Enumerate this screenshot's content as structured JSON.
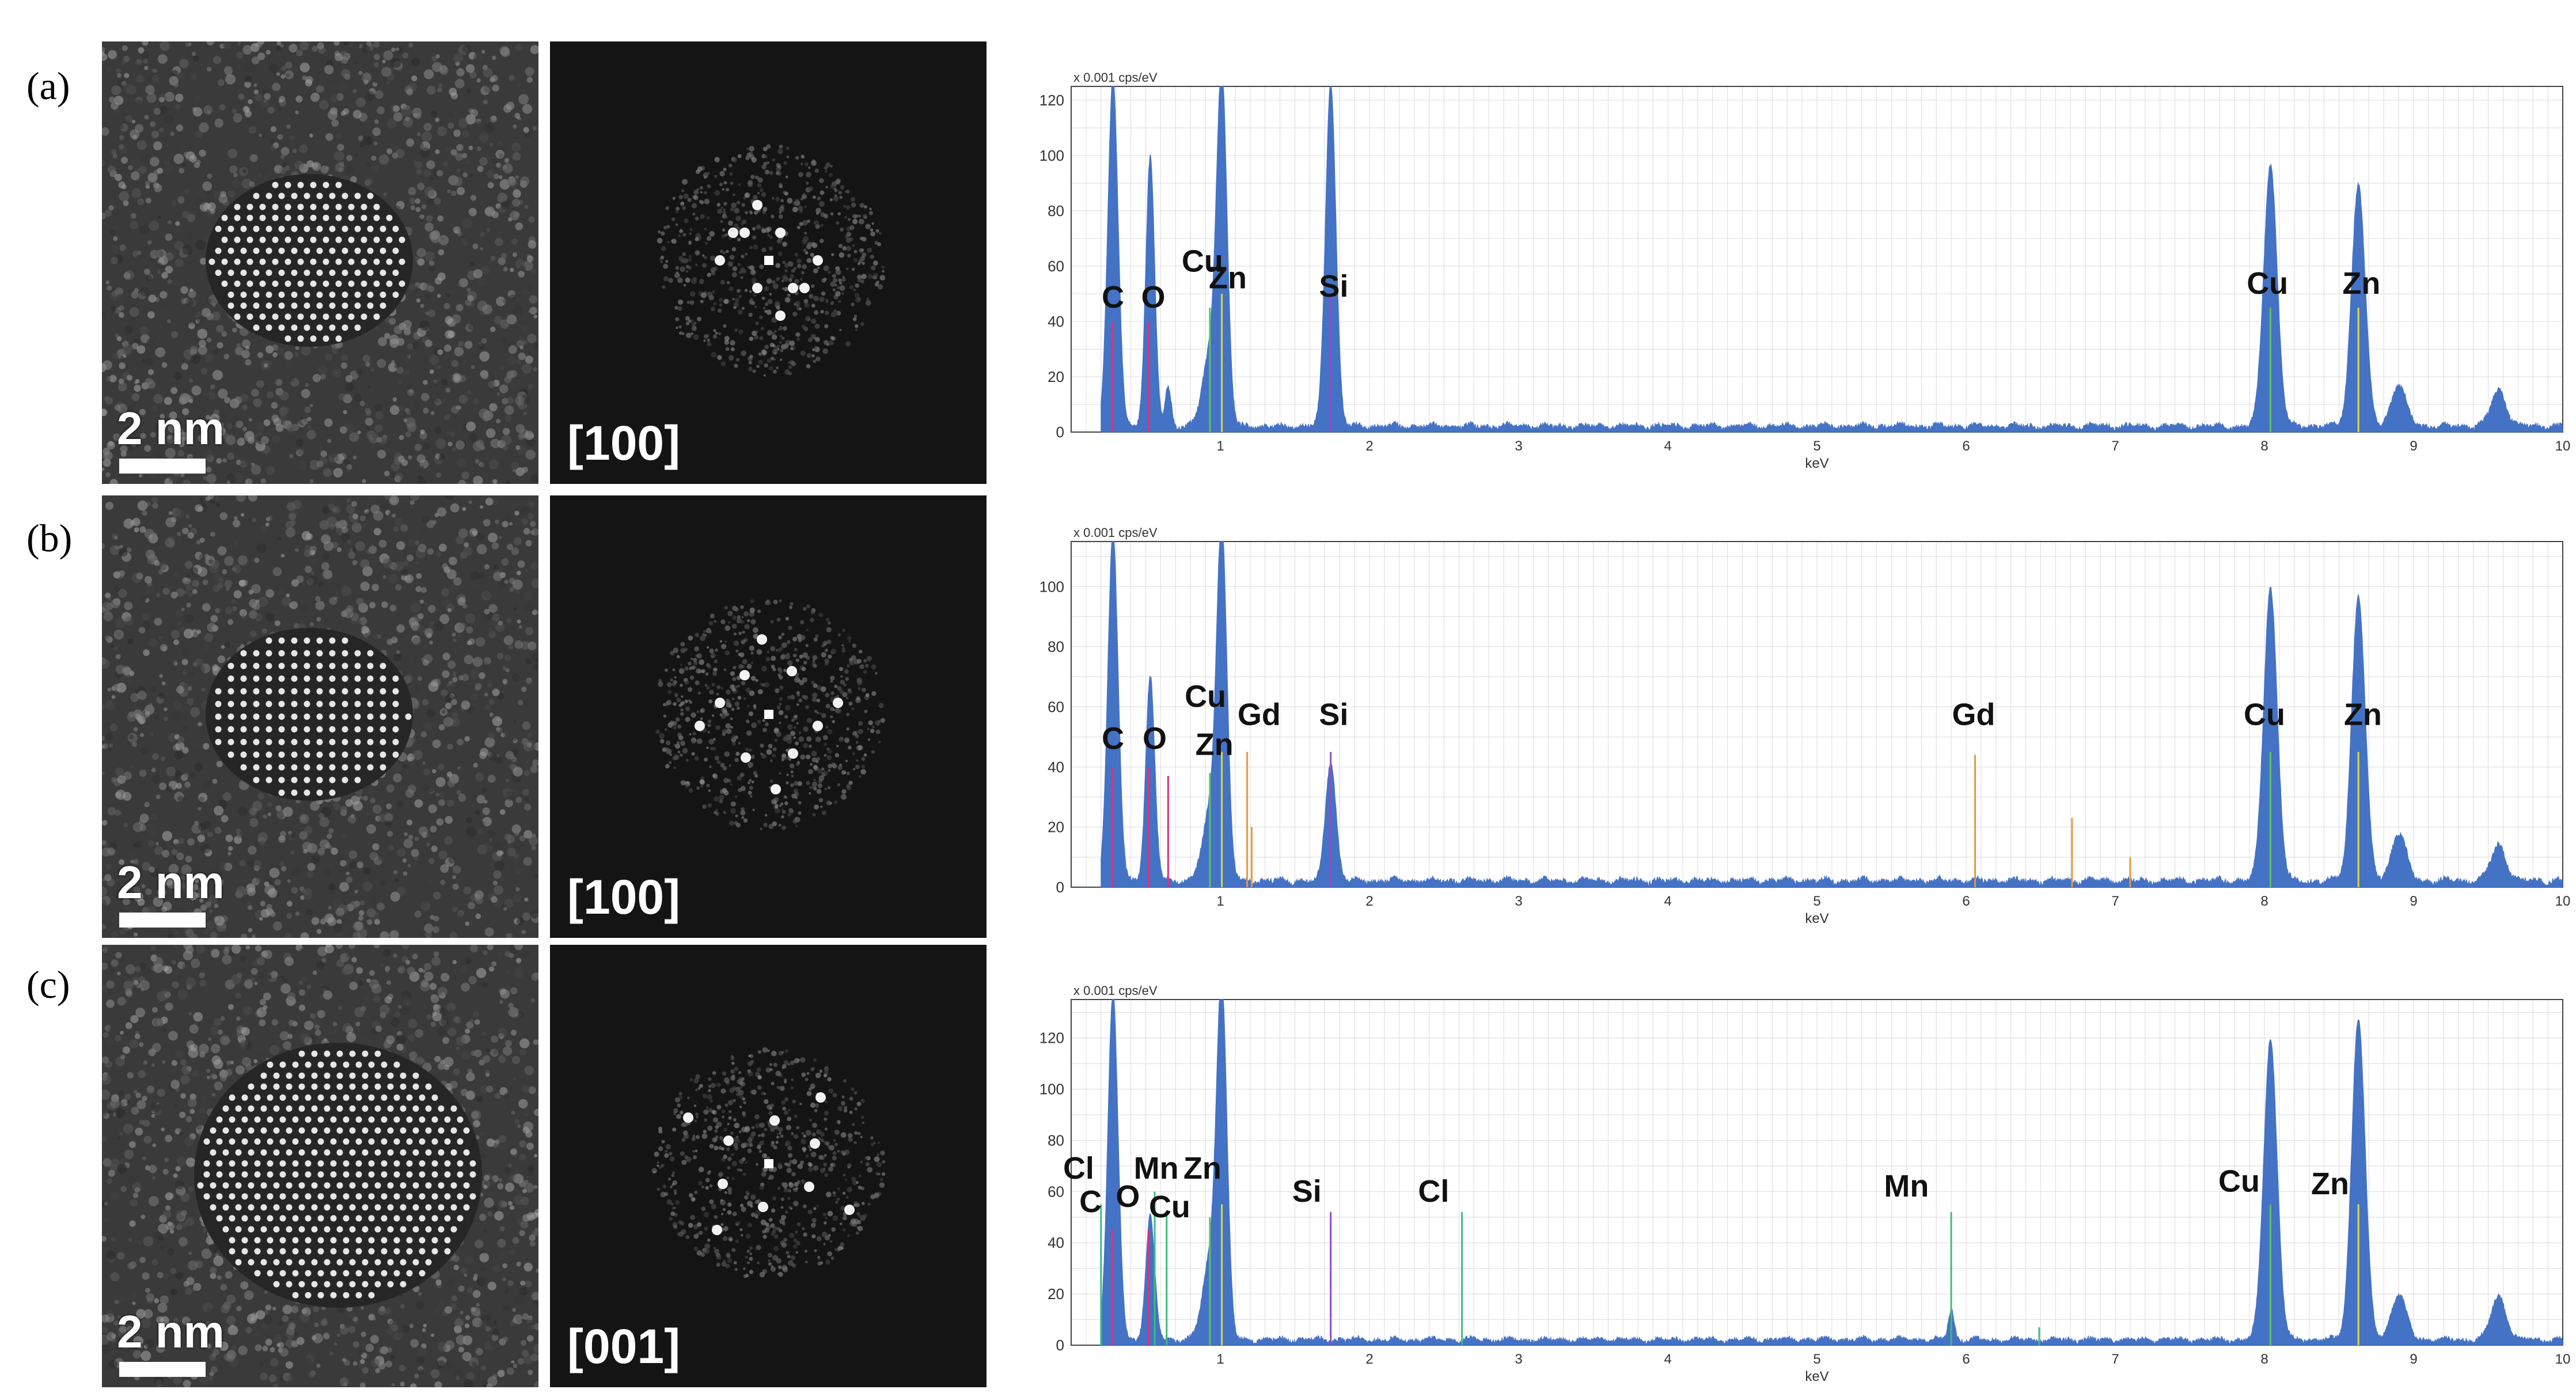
{
  "figure": {
    "panels": [
      {
        "label": "(a)",
        "hrtem": {
          "scale_bar": "2 nm",
          "lattice": "hex"
        },
        "fft": {
          "zone_axis": "[100]"
        }
      },
      {
        "label": "(b)",
        "hrtem": {
          "scale_bar": "2 nm",
          "lattice": "square"
        },
        "fft": {
          "zone_axis": "[100]"
        }
      },
      {
        "label": "(c)",
        "hrtem": {
          "scale_bar": "2 nm",
          "lattice": "hex"
        },
        "fft": {
          "zone_axis": "[001]"
        }
      }
    ]
  },
  "colors": {
    "spectrum_fill": "#4472c4",
    "grid": "#dcdcdc",
    "marker_C": "#e0307a",
    "marker_O": "#e0307a",
    "marker_Cu": "#5bc45b",
    "marker_Zn": "#d8d840",
    "marker_Si": "#8c4fc2",
    "marker_Gd": "#e8983c",
    "marker_Mn": "#3cbc7c",
    "marker_Cl": "#3cbc7c"
  },
  "chart_data": [
    {
      "type": "area",
      "unit_label": "x 0.001 cps/eV",
      "xlabel": "keV",
      "xlim": [
        0,
        10
      ],
      "ylim": [
        0,
        125
      ],
      "x_ticks": [
        "1",
        "2",
        "3",
        "4",
        "5",
        "6",
        "7",
        "8",
        "9",
        "10"
      ],
      "y_ticks": [
        "0",
        "20",
        "40",
        "60",
        "80",
        "100",
        "120"
      ],
      "grid": true,
      "peaks": [
        {
          "center": 0.28,
          "height": 125,
          "width": 0.035
        },
        {
          "center": 0.53,
          "height": 97,
          "width": 0.03
        },
        {
          "center": 0.65,
          "height": 14,
          "width": 0.02
        },
        {
          "center": 0.93,
          "height": 25,
          "width": 0.05
        },
        {
          "center": 1.01,
          "height": 125,
          "width": 0.035
        },
        {
          "center": 1.74,
          "height": 125,
          "width": 0.035
        },
        {
          "center": 8.04,
          "height": 95,
          "width": 0.045
        },
        {
          "center": 8.63,
          "height": 88,
          "width": 0.045
        },
        {
          "center": 8.9,
          "height": 15,
          "width": 0.05
        },
        {
          "center": 9.57,
          "height": 13,
          "width": 0.05
        }
      ],
      "markers": [
        {
          "energy": 0.28,
          "height": 40,
          "element": "C"
        },
        {
          "energy": 0.52,
          "height": 40,
          "element": "O"
        },
        {
          "energy": 0.93,
          "height": 45,
          "element": "Cu"
        },
        {
          "energy": 1.01,
          "height": 50,
          "element": "Zn"
        },
        {
          "energy": 1.74,
          "height": 50,
          "element": "Si"
        },
        {
          "energy": 8.04,
          "height": 45,
          "element": "Cu"
        },
        {
          "energy": 8.63,
          "height": 45,
          "element": "Zn"
        }
      ],
      "annotations": [
        {
          "text": "C",
          "x": 0.28,
          "y": 45
        },
        {
          "text": "O",
          "x": 0.55,
          "y": 45
        },
        {
          "text": "Cu",
          "x": 0.88,
          "y": 58
        },
        {
          "text": "Zn",
          "x": 1.05,
          "y": 52
        },
        {
          "text": "Si",
          "x": 1.76,
          "y": 49
        },
        {
          "text": "Cu",
          "x": 8.02,
          "y": 50
        },
        {
          "text": "Zn",
          "x": 8.65,
          "y": 50
        }
      ]
    },
    {
      "type": "area",
      "unit_label": "x 0.001 cps/eV",
      "xlabel": "keV",
      "xlim": [
        0,
        10
      ],
      "ylim": [
        0,
        115
      ],
      "x_ticks": [
        "1",
        "2",
        "3",
        "4",
        "5",
        "6",
        "7",
        "8",
        "9",
        "10"
      ],
      "y_ticks": [
        "0",
        "20",
        "40",
        "60",
        "80",
        "100"
      ],
      "grid": true,
      "peaks": [
        {
          "center": 0.28,
          "height": 115,
          "width": 0.035
        },
        {
          "center": 0.53,
          "height": 68,
          "width": 0.03
        },
        {
          "center": 0.93,
          "height": 22,
          "width": 0.05
        },
        {
          "center": 1.01,
          "height": 115,
          "width": 0.035
        },
        {
          "center": 1.74,
          "height": 40,
          "width": 0.035
        },
        {
          "center": 8.04,
          "height": 98,
          "width": 0.045
        },
        {
          "center": 8.63,
          "height": 95,
          "width": 0.045
        },
        {
          "center": 8.9,
          "height": 16,
          "width": 0.05
        },
        {
          "center": 9.57,
          "height": 12,
          "width": 0.05
        }
      ],
      "markers": [
        {
          "energy": 0.28,
          "height": 40,
          "element": "C"
        },
        {
          "energy": 0.52,
          "height": 40,
          "element": "O"
        },
        {
          "energy": 0.65,
          "height": 37,
          "element": "O"
        },
        {
          "energy": 0.93,
          "height": 38,
          "element": "Cu"
        },
        {
          "energy": 1.01,
          "height": 45,
          "element": "Zn"
        },
        {
          "energy": 1.18,
          "height": 45,
          "element": "Gd"
        },
        {
          "energy": 1.21,
          "height": 20,
          "element": "Gd"
        },
        {
          "energy": 1.74,
          "height": 45,
          "element": "Si"
        },
        {
          "energy": 6.06,
          "height": 44,
          "element": "Gd"
        },
        {
          "energy": 6.71,
          "height": 23,
          "element": "Gd"
        },
        {
          "energy": 7.1,
          "height": 10,
          "element": "Gd"
        },
        {
          "energy": 8.04,
          "height": 45,
          "element": "Cu"
        },
        {
          "energy": 8.63,
          "height": 45,
          "element": "Zn"
        }
      ],
      "annotations": [
        {
          "text": "C",
          "x": 0.28,
          "y": 46
        },
        {
          "text": "O",
          "x": 0.56,
          "y": 46
        },
        {
          "text": "Cu",
          "x": 0.9,
          "y": 60
        },
        {
          "text": "Zn",
          "x": 0.96,
          "y": 44
        },
        {
          "text": "Gd",
          "x": 1.26,
          "y": 54
        },
        {
          "text": "Si",
          "x": 1.76,
          "y": 54
        },
        {
          "text": "Gd",
          "x": 6.05,
          "y": 54
        },
        {
          "text": "Cu",
          "x": 8.0,
          "y": 54
        },
        {
          "text": "Zn",
          "x": 8.66,
          "y": 54
        }
      ]
    },
    {
      "type": "area",
      "unit_label": "x 0.001 cps/eV",
      "xlabel": "keV",
      "xlim": [
        0,
        10
      ],
      "ylim": [
        0,
        135
      ],
      "x_ticks": [
        "1",
        "2",
        "3",
        "4",
        "5",
        "6",
        "7",
        "8",
        "9",
        "10"
      ],
      "y_ticks": [
        "0",
        "20",
        "40",
        "60",
        "80",
        "100",
        "120"
      ],
      "grid": true,
      "peaks": [
        {
          "center": 0.28,
          "height": 135,
          "width": 0.035
        },
        {
          "center": 0.53,
          "height": 48,
          "width": 0.03
        },
        {
          "center": 0.93,
          "height": 30,
          "width": 0.05
        },
        {
          "center": 1.01,
          "height": 135,
          "width": 0.035
        },
        {
          "center": 5.9,
          "height": 12,
          "width": 0.02
        },
        {
          "center": 8.04,
          "height": 118,
          "width": 0.045
        },
        {
          "center": 8.63,
          "height": 126,
          "width": 0.045
        },
        {
          "center": 8.9,
          "height": 18,
          "width": 0.05
        },
        {
          "center": 9.57,
          "height": 17,
          "width": 0.05
        }
      ],
      "markers": [
        {
          "energy": 0.2,
          "height": 55,
          "element": "Cl"
        },
        {
          "energy": 0.28,
          "height": 45,
          "element": "C"
        },
        {
          "energy": 0.52,
          "height": 45,
          "element": "O"
        },
        {
          "energy": 0.56,
          "height": 60,
          "element": "Mn"
        },
        {
          "energy": 0.64,
          "height": 52,
          "element": "Mn"
        },
        {
          "energy": 0.93,
          "height": 50,
          "element": "Cu"
        },
        {
          "energy": 1.01,
          "height": 55,
          "element": "Zn"
        },
        {
          "energy": 1.74,
          "height": 52,
          "element": "Si"
        },
        {
          "energy": 2.62,
          "height": 52,
          "element": "Cl"
        },
        {
          "energy": 5.9,
          "height": 52,
          "element": "Mn"
        },
        {
          "energy": 6.49,
          "height": 7,
          "element": "Mn"
        },
        {
          "energy": 8.04,
          "height": 55,
          "element": "Cu"
        },
        {
          "energy": 8.63,
          "height": 55,
          "element": "Zn"
        }
      ],
      "annotations": [
        {
          "text": "Cl",
          "x": 0.05,
          "y": 65
        },
        {
          "text": "C",
          "x": 0.13,
          "y": 52
        },
        {
          "text": "O",
          "x": 0.38,
          "y": 54
        },
        {
          "text": "Mn",
          "x": 0.57,
          "y": 65
        },
        {
          "text": "Cu",
          "x": 0.66,
          "y": 50
        },
        {
          "text": "Zn",
          "x": 0.88,
          "y": 65
        },
        {
          "text": "Si",
          "x": 1.58,
          "y": 56
        },
        {
          "text": "Cl",
          "x": 2.43,
          "y": 56
        },
        {
          "text": "Mn",
          "x": 5.6,
          "y": 58
        },
        {
          "text": "Cu",
          "x": 7.83,
          "y": 60
        },
        {
          "text": "Zn",
          "x": 8.44,
          "y": 59
        }
      ]
    }
  ]
}
